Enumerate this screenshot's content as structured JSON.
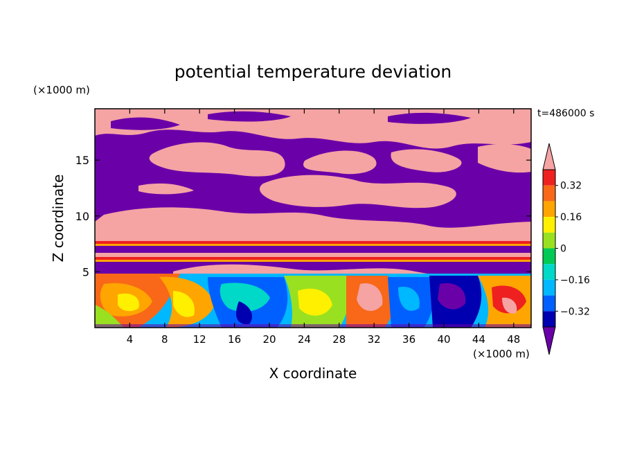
{
  "chart_data": {
    "type": "heatmap",
    "title": "potential temperature deviation",
    "xlabel": "X coordinate",
    "ylabel": "Z coordinate",
    "x_unit": "(×1000 m)",
    "y_unit": "(×1000 m)",
    "time_label": "t=486000 s",
    "xlim": [
      0,
      50
    ],
    "ylim": [
      0,
      19.6
    ],
    "x_ticks": [
      4,
      8,
      12,
      16,
      20,
      24,
      28,
      32,
      36,
      40,
      44,
      48
    ],
    "y_ticks": [
      5,
      10,
      15
    ],
    "colorbar": {
      "tick_labels": [
        "0.32",
        "0.16",
        "0",
        "-0.16",
        "-0.32"
      ],
      "tick_values": [
        0.32,
        0.16,
        0,
        -0.16,
        -0.32
      ],
      "levels": [
        0.4,
        0.32,
        0.24,
        0.16,
        0.08,
        0,
        -0.08,
        -0.16,
        -0.24,
        -0.32,
        -0.4
      ],
      "colors": [
        "#f5a3a3",
        "#ee2020",
        "#f86818",
        "#ffa500",
        "#fff000",
        "#99e020",
        "#00ca55",
        "#00d8c8",
        "#00b8ff",
        "#0060ff",
        "#0000b0",
        "#6a00a8"
      ],
      "extend": "both"
    },
    "regions": [
      {
        "layer": "z 0-5 km",
        "dominant": "mixed: red, orange, yellow, green, cyan, blue"
      },
      {
        "layer": "z 5-8 km",
        "dominant": "purple with pink/red bands near z 6 and z 7.5"
      },
      {
        "layer": "z 8-20 km",
        "dominant": "alternating pink and purple patches"
      }
    ]
  }
}
